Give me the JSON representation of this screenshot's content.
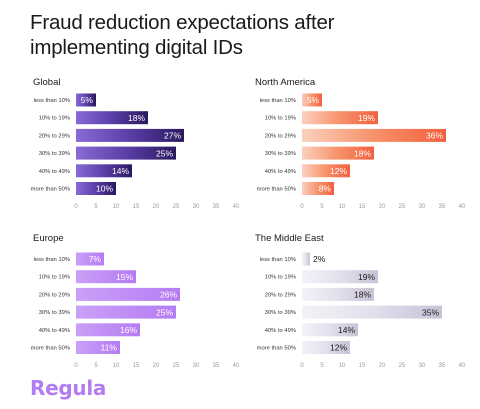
{
  "title_lines": [
    "Fraud reduction expectations after",
    "implementing digital IDs"
  ],
  "logo_text": "Regula",
  "colors": {
    "global": [
      "#2a1860",
      "#5b3ea8",
      "#8a6ad4"
    ],
    "north_america": [
      "#f2603f",
      "#f6926a",
      "#fbd0bd"
    ],
    "europe": [
      "#b67cf3",
      "#c9a0f7"
    ],
    "middle_east": [
      "#c8c2d6",
      "#e3dfec",
      "#f4f2f8"
    ],
    "axis": "#9a9a9a",
    "logo": "#b47cf2"
  },
  "chart_data": [
    {
      "type": "bar",
      "orientation": "horizontal",
      "title": "Global",
      "categories": [
        "less than 10%",
        "10% to 19%",
        "20% to 29%",
        "30% to 39%",
        "40% to 49%",
        "more than 50%"
      ],
      "values": [
        5,
        18,
        27,
        25,
        14,
        10
      ],
      "value_labels": [
        "5%",
        "18%",
        "27%",
        "25%",
        "14%",
        "10%"
      ],
      "xlim": [
        0,
        40
      ],
      "xticks": [
        "0",
        "5",
        "10",
        "15",
        "20",
        "25",
        "30",
        "35",
        "40"
      ]
    },
    {
      "type": "bar",
      "orientation": "horizontal",
      "title": "North America",
      "categories": [
        "less than 10%",
        "10% to 19%",
        "20% to 29%",
        "30% to 39%",
        "40% to 49%",
        "more than 50%"
      ],
      "values": [
        5,
        19,
        36,
        18,
        12,
        8
      ],
      "value_labels": [
        "5%",
        "19%",
        "36%",
        "18%",
        "12%",
        "8%"
      ],
      "xlim": [
        0,
        40
      ],
      "xticks": [
        "0",
        "5",
        "10",
        "15",
        "20",
        "25",
        "30",
        "35",
        "40"
      ]
    },
    {
      "type": "bar",
      "orientation": "horizontal",
      "title": "Europe",
      "categories": [
        "less than 10%",
        "10% to 19%",
        "20% to 29%",
        "30% to 39%",
        "40% to 49%",
        "more than 50%"
      ],
      "values": [
        7,
        15,
        26,
        25,
        16,
        11
      ],
      "value_labels": [
        "7%",
        "15%",
        "26%",
        "25%",
        "16%",
        "11%"
      ],
      "xlim": [
        0,
        40
      ],
      "xticks": [
        "0",
        "5",
        "10",
        "15",
        "20",
        "25",
        "30",
        "35",
        "40"
      ]
    },
    {
      "type": "bar",
      "orientation": "horizontal",
      "title": "The Middle East",
      "categories": [
        "less than 10%",
        "10% to 19%",
        "20% to 29%",
        "30% to 39%",
        "40% to 49%",
        "more than 50%"
      ],
      "values": [
        2,
        19,
        18,
        35,
        14,
        12
      ],
      "value_labels": [
        "2%",
        "19%",
        "18%",
        "35%",
        "14%",
        "12%"
      ],
      "xlim": [
        0,
        40
      ],
      "xticks": [
        "0",
        "5",
        "10",
        "15",
        "20",
        "25",
        "30",
        "35",
        "40"
      ]
    }
  ]
}
